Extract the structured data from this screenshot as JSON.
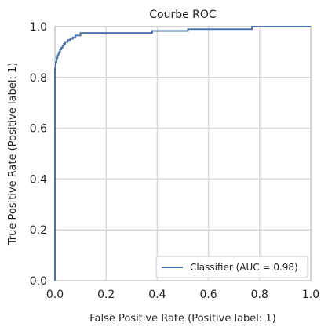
{
  "chart_data": {
    "type": "line",
    "title": "Courbe ROC",
    "xlabel": "False Positive Rate (Positive label: 1)",
    "ylabel": "True Positive Rate (Positive label: 1)",
    "xlim": [
      0.0,
      1.0
    ],
    "ylim": [
      0.0,
      1.0
    ],
    "xticks": [
      0.0,
      0.2,
      0.4,
      0.6,
      0.8,
      1.0
    ],
    "yticks": [
      0.0,
      0.2,
      0.4,
      0.6,
      0.8,
      1.0
    ],
    "xtick_labels": [
      "0.0",
      "0.2",
      "0.4",
      "0.6",
      "0.8",
      "1.0"
    ],
    "ytick_labels": [
      "0.0",
      "0.2",
      "0.4",
      "0.6",
      "0.8",
      "1.0"
    ],
    "grid": true,
    "legend_position": "lower-right",
    "series": [
      {
        "name": "Classifier (AUC = 0.98)",
        "color": "#4c72b0",
        "x": [
          0.0,
          0.0,
          0.003,
          0.003,
          0.006,
          0.006,
          0.01,
          0.01,
          0.013,
          0.013,
          0.016,
          0.016,
          0.02,
          0.02,
          0.025,
          0.025,
          0.03,
          0.03,
          0.035,
          0.035,
          0.04,
          0.04,
          0.05,
          0.05,
          0.06,
          0.06,
          0.07,
          0.07,
          0.08,
          0.08,
          0.1,
          0.1,
          0.38,
          0.38,
          0.52,
          0.52,
          0.77,
          0.77,
          1.0
        ],
        "y": [
          0.0,
          0.835,
          0.835,
          0.86,
          0.86,
          0.875,
          0.875,
          0.885,
          0.885,
          0.893,
          0.893,
          0.9,
          0.9,
          0.91,
          0.91,
          0.917,
          0.917,
          0.925,
          0.925,
          0.932,
          0.932,
          0.94,
          0.94,
          0.947,
          0.947,
          0.952,
          0.952,
          0.957,
          0.957,
          0.965,
          0.965,
          0.975,
          0.975,
          0.983,
          0.983,
          0.99,
          0.99,
          1.0,
          1.0
        ]
      }
    ]
  }
}
